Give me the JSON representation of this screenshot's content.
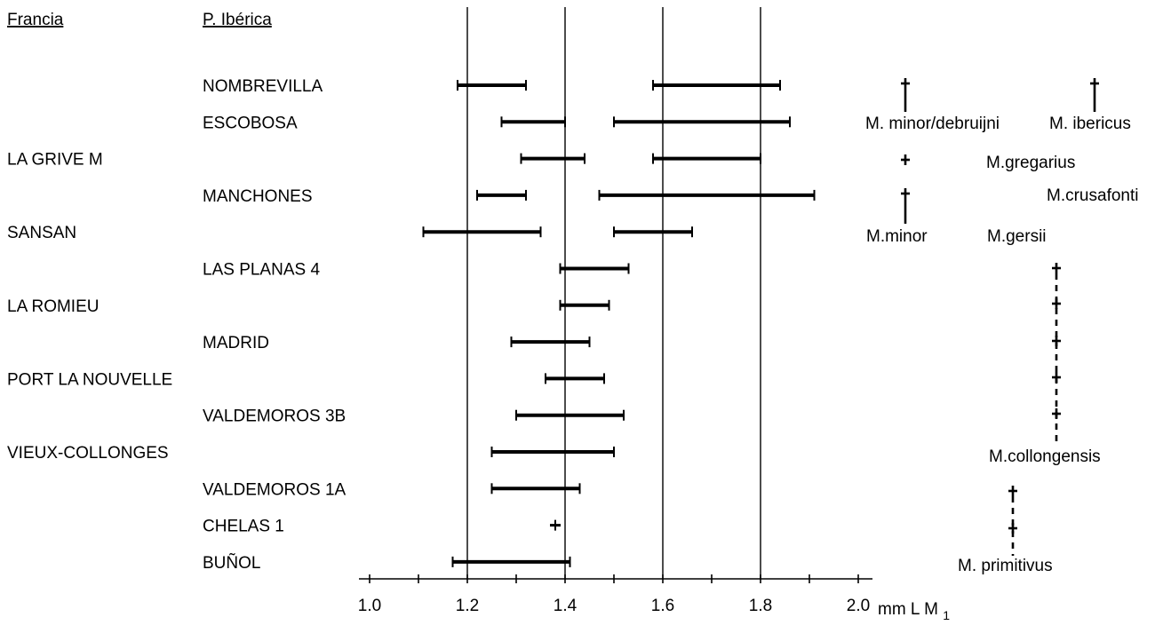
{
  "chart_data": {
    "type": "range",
    "headers": {
      "left": "Francia",
      "right": "P. Ibérica"
    },
    "xlim": [
      1.0,
      2.0
    ],
    "ticks": [
      1.0,
      1.2,
      1.4,
      1.6,
      1.8,
      2.0
    ],
    "tick_labels": [
      "1.0",
      "1.2",
      "1.4",
      "1.6",
      "1.8",
      "2.0"
    ],
    "vertical_gridlines": [
      1.2,
      1.4,
      1.6,
      1.8
    ],
    "xlabel": "mm L M",
    "xlabel_sub": "1",
    "rows": [
      {
        "label": "NOMBREVILLA",
        "column": "iberica",
        "ranges": [
          [
            1.18,
            1.32
          ],
          [
            1.58,
            1.84
          ]
        ]
      },
      {
        "label": "ESCOBOSA",
        "column": "iberica",
        "ranges": [
          [
            1.27,
            1.4
          ],
          [
            1.5,
            1.86
          ]
        ]
      },
      {
        "label": "LA GRIVE M",
        "column": "francia",
        "ranges": [
          [
            1.31,
            1.44
          ],
          [
            1.58,
            1.8
          ]
        ]
      },
      {
        "label": "MANCHONES",
        "column": "iberica",
        "ranges": [
          [
            1.22,
            1.32
          ],
          [
            1.47,
            1.91
          ]
        ]
      },
      {
        "label": "SANSAN",
        "column": "francia",
        "ranges": [
          [
            1.11,
            1.35
          ],
          [
            1.5,
            1.66
          ]
        ]
      },
      {
        "label": "LAS PLANAS 4",
        "column": "iberica",
        "ranges": [
          [
            1.39,
            1.53
          ]
        ]
      },
      {
        "label": "LA ROMIEU",
        "column": "francia",
        "ranges": [
          [
            1.39,
            1.49
          ]
        ]
      },
      {
        "label": "MADRID",
        "column": "iberica",
        "ranges": [
          [
            1.29,
            1.45
          ]
        ]
      },
      {
        "label": "PORT LA NOUVELLE",
        "column": "francia",
        "ranges": [
          [
            1.36,
            1.48
          ]
        ]
      },
      {
        "label": "VALDEMOROS 3B",
        "column": "iberica",
        "ranges": [
          [
            1.3,
            1.52
          ]
        ]
      },
      {
        "label": "VIEUX-COLLONGES",
        "column": "francia",
        "ranges": [
          [
            1.25,
            1.5
          ]
        ]
      },
      {
        "label": "VALDEMOROS 1A",
        "column": "iberica",
        "ranges": [
          [
            1.25,
            1.43
          ]
        ]
      },
      {
        "label": "CHELAS 1",
        "column": "iberica",
        "ranges": [
          [
            1.38,
            1.38
          ]
        ]
      },
      {
        "label": "BUÑOL",
        "column": "iberica",
        "ranges": [
          [
            1.17,
            1.41
          ]
        ]
      }
    ],
    "species_labels": [
      "M. minor/debruijni",
      "M. ibericus",
      "M.gregarius",
      "M.crusafonti",
      "M.minor",
      "M.gersii",
      "M.collongensis",
      "M. primitivus"
    ]
  }
}
